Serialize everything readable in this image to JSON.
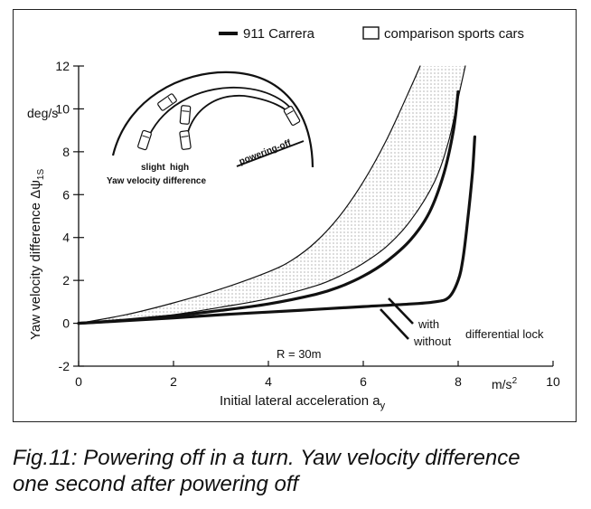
{
  "chart_data": {
    "type": "line",
    "title": "",
    "xlabel": "Initial lateral acceleration a",
    "xlabel_sub": "y",
    "x_unit": "m/s²",
    "ylabel": "Yaw velocity difference Δψ",
    "ylabel_sub": "1S",
    "y_unit": "deg/s",
    "xlim": [
      0,
      10
    ],
    "ylim": [
      -2,
      12
    ],
    "x_ticks": [
      0,
      2,
      4,
      6,
      8,
      10
    ],
    "y_ticks": [
      -2,
      0,
      2,
      4,
      6,
      8,
      10,
      12
    ],
    "grid": false,
    "legend": {
      "position": "top-right",
      "entries": [
        {
          "label": "911 Carrera",
          "style": "thick-line"
        },
        {
          "label": "comparison sports cars",
          "style": "box"
        }
      ]
    },
    "series": [
      {
        "name": "with differential lock",
        "style": "thick",
        "x": [
          0,
          1,
          2,
          3,
          4,
          5,
          6,
          7,
          7.5,
          7.8,
          8.0,
          8.1,
          8.2,
          8.3,
          8.35
        ],
        "y": [
          0,
          0.12,
          0.25,
          0.4,
          0.52,
          0.65,
          0.78,
          0.9,
          1.0,
          1.2,
          2.0,
          3.0,
          4.8,
          7.0,
          8.7
        ]
      },
      {
        "name": "without differential lock",
        "style": "thick",
        "x": [
          0,
          1,
          2,
          3,
          4,
          5,
          5.5,
          6,
          6.5,
          7,
          7.4,
          7.7,
          7.9,
          8.0
        ],
        "y": [
          0,
          0.15,
          0.35,
          0.6,
          0.9,
          1.35,
          1.7,
          2.2,
          2.9,
          3.9,
          5.2,
          7.0,
          9.0,
          10.8
        ]
      },
      {
        "name": "comparison sports cars (lower bound)",
        "style": "thin",
        "x": [
          0,
          1,
          2,
          3,
          4,
          5,
          5.5,
          6,
          6.5,
          7,
          7.5,
          7.8,
          8.0,
          8.15
        ],
        "y": [
          0,
          0.18,
          0.4,
          0.75,
          1.15,
          1.75,
          2.2,
          2.8,
          3.6,
          4.8,
          6.6,
          8.5,
          10.5,
          12.0
        ]
      },
      {
        "name": "comparison sports cars (upper bound)",
        "style": "thin",
        "x": [
          0,
          1,
          2,
          3,
          4,
          4.5,
          5,
          5.5,
          6,
          6.5,
          7,
          7.2
        ],
        "y": [
          0,
          0.4,
          0.95,
          1.6,
          2.4,
          2.95,
          3.8,
          5.0,
          6.6,
          8.6,
          11.0,
          12.0
        ]
      }
    ],
    "annotations": {
      "radius": "R = 30m",
      "with": "with",
      "without": "without",
      "differential_lock": "differential lock"
    }
  },
  "inset": {
    "slight": "slight",
    "high": "high",
    "yaw_velocity_difference": "Yaw velocity difference",
    "powering_off": "powering-off"
  },
  "caption": {
    "line1": "Fig.11: Powering off in a turn. Yaw velocity difference",
    "line2": "one second after powering off"
  }
}
